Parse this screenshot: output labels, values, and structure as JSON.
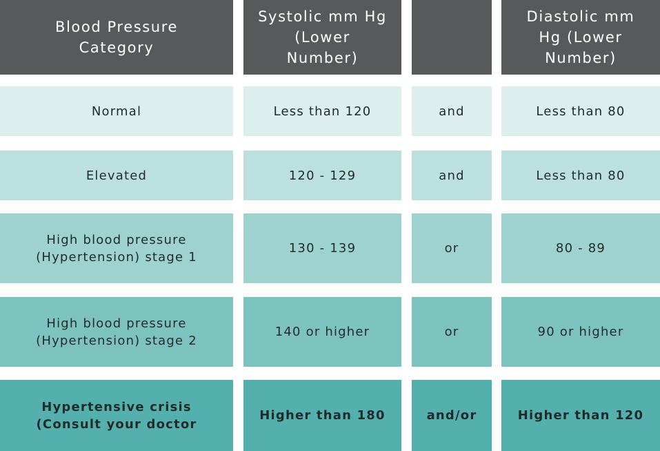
{
  "header": {
    "category": "Blood Pressure\nCategory",
    "systolic": "Systolic mm Hg\n(Lower\nNumber)",
    "connector": "",
    "diastolic": "Diastolic mm\nHg (Lower\nNumber)"
  },
  "rows": [
    {
      "category": "Normal",
      "systolic": "Less than 120",
      "connector": "and",
      "diastolic": "Less than 80",
      "color": "#ddeeee"
    },
    {
      "category": "Elevated",
      "systolic": "120 - 129",
      "connector": "and",
      "diastolic": "Less than 80",
      "color": "#bce0de"
    },
    {
      "category": "High blood pressure\n(Hypertension) stage 1",
      "systolic": "130 - 139",
      "connector": "or",
      "diastolic": "80 - 89",
      "color": "#9dd2cf"
    },
    {
      "category": "High blood pressure\n(Hypertension) stage 2",
      "systolic": "140 or higher",
      "connector": "or",
      "diastolic": "90 or higher",
      "color": "#7cc3bf"
    },
    {
      "category": "Hypertensive crisis\n(Consult your doctor",
      "systolic": "Higher than 180",
      "connector": "and/or",
      "diastolic": "Higher than 120",
      "color": "#54b0ac"
    }
  ]
}
